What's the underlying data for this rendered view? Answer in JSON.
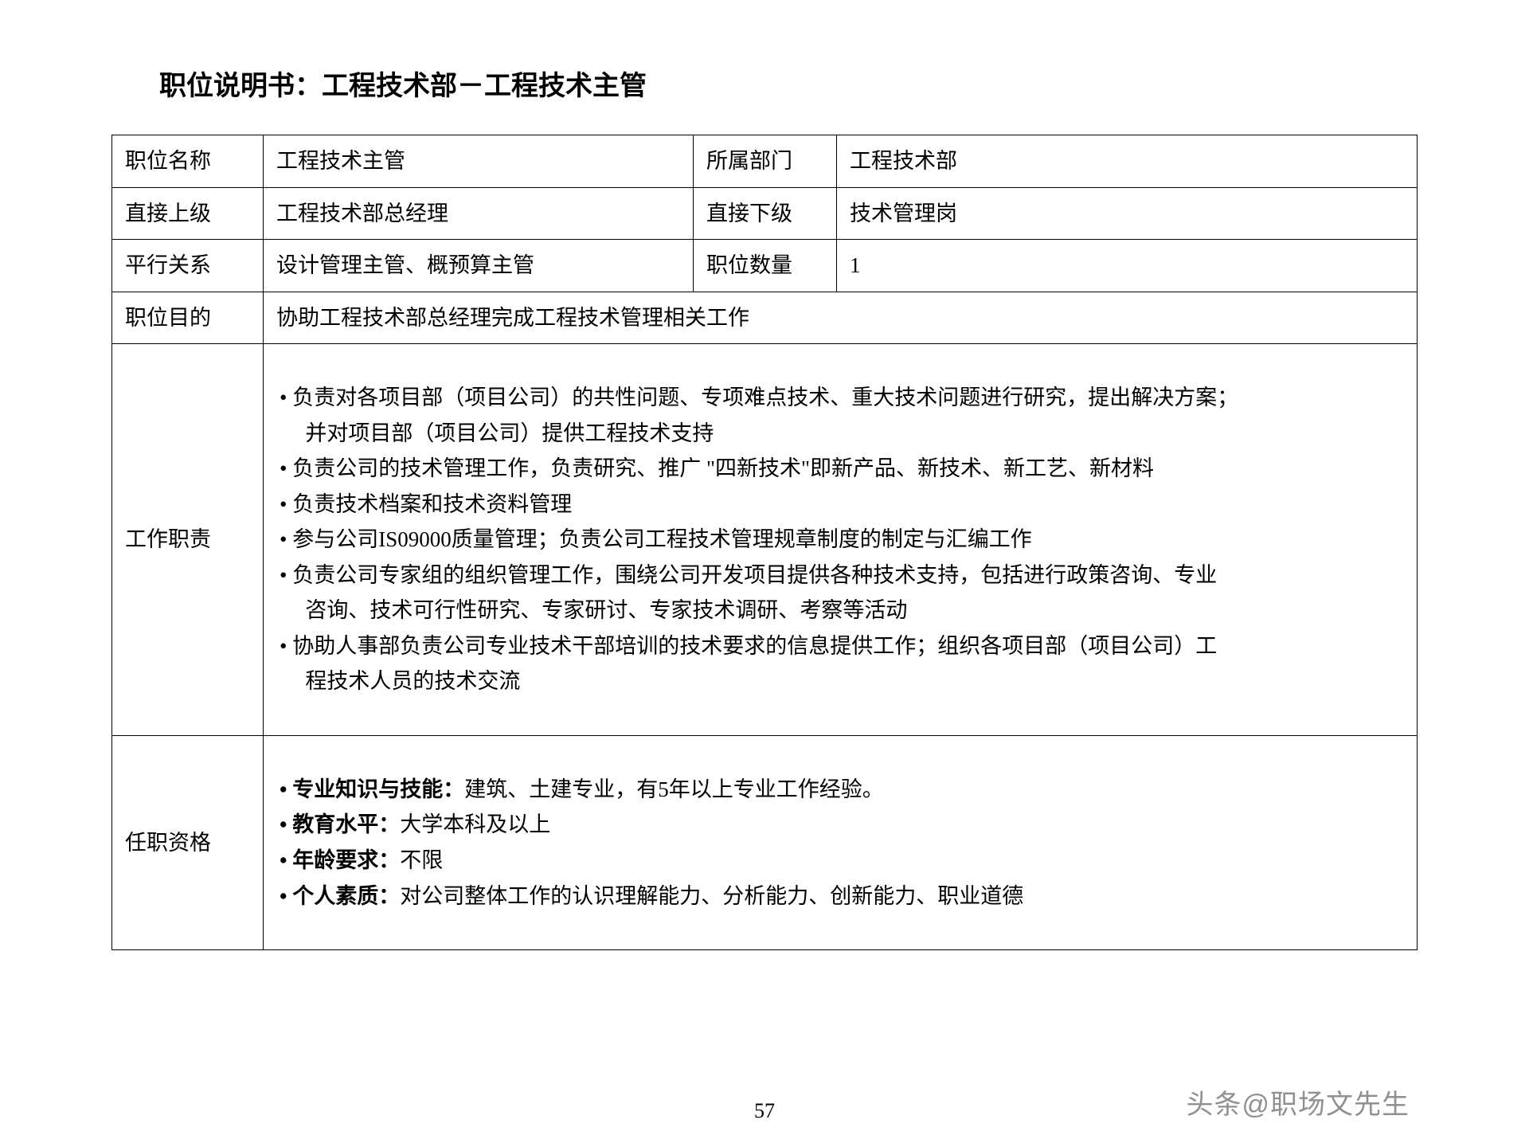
{
  "title": "职位说明书：工程技术部－工程技术主管",
  "labels": {
    "position_name": "职位名称",
    "department": "所属部门",
    "report_to": "直接上级",
    "subordinate": "直接下级",
    "peer": "平行关系",
    "count": "职位数量",
    "purpose": "职位目的",
    "duties": "工作职责",
    "qualifications": "任职资格"
  },
  "values": {
    "position_name": "工程技术主管",
    "department": "工程技术部",
    "report_to": "工程技术部总经理",
    "subordinate": "技术管理岗",
    "peer": "设计管理主管、概预算主管",
    "count": "1",
    "purpose": "协助工程技术部总经理完成工程技术管理相关工作"
  },
  "duties": {
    "b1a": "• 负责对各项目部（项目公司）的共性问题、专项难点技术、重大技术问题进行研究，提出解决方案；",
    "b1b": "并对项目部（项目公司）提供工程技术支持",
    "b2": "• 负责公司的技术管理工作，负责研究、推广 \"四新技术\"即新产品、新技术、新工艺、新材料",
    "b3": "• 负责技术档案和技术资料管理",
    "b4": "• 参与公司IS09000质量管理；负责公司工程技术管理规章制度的制定与汇编工作",
    "b5a": "• 负责公司专家组的组织管理工作，围绕公司开发项目提供各种技术支持，包括进行政策咨询、专业",
    "b5b": "咨询、技术可行性研究、专家研讨、专家技术调研、考察等活动",
    "b6a": "• 协助人事部负责公司专业技术干部培训的技术要求的信息提供工作；组织各项目部（项目公司）工",
    "b6b": "程技术人员的技术交流"
  },
  "qual": {
    "q1_label": "• 专业知识与技能：",
    "q1_text": "建筑、土建专业，有5年以上专业工作经验。",
    "q2_label": "• 教育水平：",
    "q2_text": "大学本科及以上",
    "q3_label": "• 年龄要求：",
    "q3_text": "不限",
    "q4_label": "• 个人素质：",
    "q4_text": "对公司整体工作的认识理解能力、分析能力、创新能力、职业道德"
  },
  "page_number": "57",
  "watermark": "头条@职场文先生",
  "colors": {
    "text": "#000000",
    "border": "#000000",
    "background": "#ffffff",
    "watermark": "#909090"
  }
}
